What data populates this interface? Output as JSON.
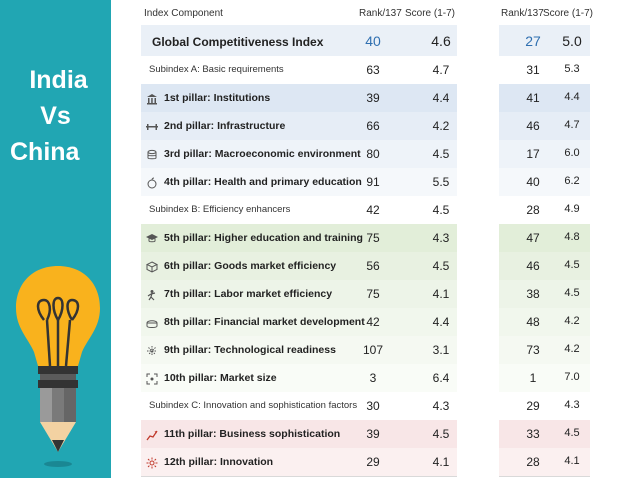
{
  "slide": {
    "title_line1": "India",
    "title_line2": "Vs",
    "title_line3": "China"
  },
  "table": {
    "header": {
      "component": "Index Component",
      "rank": "Rank/137",
      "score": "Score (1-7)"
    },
    "rows": [
      {
        "label": "Global Competitiveness Index",
        "kind": "gci",
        "india_rank": "40",
        "india_score": "4.6",
        "china_rank": "27",
        "china_score": "5.0",
        "bg": "#eaf0f7"
      },
      {
        "label": "Subindex A: Basic requirements",
        "kind": "sub",
        "india_rank": "63",
        "india_score": "4.7",
        "china_rank": "31",
        "china_score": "5.3",
        "bg": "#ffffff"
      },
      {
        "label": "1st pillar: Institutions",
        "kind": "pillar",
        "icon": "institution-icon",
        "india_rank": "39",
        "india_score": "4.4",
        "china_rank": "41",
        "china_score": "4.4",
        "bg": "#dde7f3"
      },
      {
        "label": "2nd pillar: Infrastructure",
        "kind": "pillar",
        "icon": "infrastructure-icon",
        "india_rank": "66",
        "india_score": "4.2",
        "china_rank": "46",
        "china_score": "4.7",
        "bg": "#e6edf6"
      },
      {
        "label": "3rd pillar: Macroeconomic environment",
        "kind": "pillar",
        "icon": "macroeconomic-icon",
        "india_rank": "80",
        "india_score": "4.5",
        "china_rank": "17",
        "china_score": "6.0",
        "bg": "#eef3f9"
      },
      {
        "label": "4th pillar: Health and primary education",
        "kind": "pillar",
        "icon": "health-icon",
        "india_rank": "91",
        "india_score": "5.5",
        "china_rank": "40",
        "china_score": "6.2",
        "bg": "#f5f8fb"
      },
      {
        "label": "Subindex B: Efficiency enhancers",
        "kind": "sub",
        "india_rank": "42",
        "india_score": "4.5",
        "china_rank": "28",
        "china_score": "4.9",
        "bg": "#ffffff"
      },
      {
        "label": "5th pillar: Higher education and training",
        "kind": "pillar",
        "icon": "graduation-cap-icon",
        "india_rank": "75",
        "india_score": "4.3",
        "china_rank": "47",
        "china_score": "4.8",
        "bg": "#e2eed9"
      },
      {
        "label": "6th pillar: Goods market efficiency",
        "kind": "pillar",
        "icon": "goods-box-icon",
        "india_rank": "56",
        "india_score": "4.5",
        "china_rank": "46",
        "china_score": "4.5",
        "bg": "#e8f1e1"
      },
      {
        "label": "7th pillar: Labor market efficiency",
        "kind": "pillar",
        "icon": "labor-worker-icon",
        "india_rank": "75",
        "india_score": "4.1",
        "china_rank": "38",
        "china_score": "4.5",
        "bg": "#edf4e8"
      },
      {
        "label": "8th pillar: Financial market development",
        "kind": "pillar",
        "icon": "financial-icon",
        "india_rank": "42",
        "india_score": "4.4",
        "china_rank": "48",
        "china_score": "4.2",
        "bg": "#f1f7ed"
      },
      {
        "label": "9th pillar: Technological readiness",
        "kind": "pillar",
        "icon": "technology-icon",
        "india_rank": "107",
        "india_score": "3.1",
        "china_rank": "73",
        "china_score": "4.2",
        "bg": "#f5f9f2"
      },
      {
        "label": "10th pillar: Market size",
        "kind": "pillar",
        "icon": "market-size-icon",
        "india_rank": "3",
        "india_score": "6.4",
        "china_rank": "1",
        "china_score": "7.0",
        "bg": "#f9fcf7"
      },
      {
        "label": "Subindex C: Innovation and sophistication factors",
        "kind": "sub",
        "india_rank": "30",
        "india_score": "4.3",
        "china_rank": "29",
        "china_score": "4.3",
        "bg": "#ffffff"
      },
      {
        "label": "11th pillar: Business sophistication",
        "kind": "pillar",
        "icon": "business-chart-icon",
        "india_rank": "39",
        "india_score": "4.5",
        "china_rank": "33",
        "china_score": "4.5",
        "bg": "#f8e6e7"
      },
      {
        "label": "12th pillar: Innovation",
        "kind": "pillar",
        "icon": "innovation-icon",
        "india_rank": "29",
        "india_score": "4.1",
        "china_rank": "28",
        "china_score": "4.1",
        "bg": "#fbf0f0"
      }
    ]
  }
}
